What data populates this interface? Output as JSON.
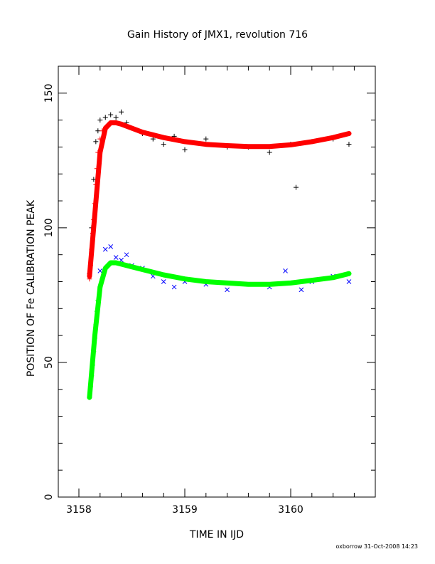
{
  "chart_data": {
    "type": "scatter",
    "title": "Gain History of JMX1, revolution 716",
    "xlabel": "TIME IN IJD",
    "ylabel": "POSITION OF Fe CALIBRATION PEAK",
    "footer": "oxborrow 31-Oct-2008 14:23",
    "xlim": [
      3157.8,
      3160.75
    ],
    "ylim": [
      0,
      160
    ],
    "x_ticks": [
      3158,
      3159,
      3160
    ],
    "x_tick_labels": [
      "3158",
      "3159",
      "3160"
    ],
    "y_ticks": [
      0,
      50,
      100,
      150
    ],
    "y_tick_labels": [
      "0",
      "50",
      "100",
      "150"
    ],
    "grid": false,
    "series": [
      {
        "marker": "plus",
        "color": "#000000",
        "x": [
          3158.1,
          3158.12,
          3158.14,
          3158.16,
          3158.18,
          3158.2,
          3158.25,
          3158.3,
          3158.35,
          3158.4,
          3158.45,
          3158.5,
          3158.6,
          3158.7,
          3158.8,
          3158.9,
          3159.0,
          3159.2,
          3159.4,
          3159.6,
          3159.8,
          3160.0,
          3160.05,
          3160.2,
          3160.4,
          3160.55
        ],
        "y": [
          83,
          100,
          118,
          132,
          136,
          140,
          141,
          142,
          141,
          143,
          139,
          137,
          135,
          133,
          131,
          134,
          129,
          133,
          130,
          130,
          128,
          131,
          115,
          132,
          133,
          131
        ]
      },
      {
        "marker": "x",
        "color": "#0000ff",
        "x": [
          3158.2,
          3158.25,
          3158.3,
          3158.35,
          3158.4,
          3158.45,
          3158.5,
          3158.6,
          3158.7,
          3158.8,
          3158.9,
          3159.0,
          3159.2,
          3159.4,
          3159.6,
          3159.8,
          3159.95,
          3160.1,
          3160.2,
          3160.4,
          3160.55
        ],
        "y": [
          84,
          92,
          93,
          89,
          88,
          90,
          86,
          85,
          82,
          80,
          78,
          80,
          79,
          77,
          79,
          78,
          84,
          77,
          80,
          82,
          80
        ]
      },
      {
        "marker": "line",
        "color": "#ff0000",
        "x": [
          3158.1,
          3158.15,
          3158.2,
          3158.25,
          3158.3,
          3158.35,
          3158.4,
          3158.5,
          3158.6,
          3158.8,
          3159.0,
          3159.2,
          3159.4,
          3159.6,
          3159.8,
          3160.0,
          3160.2,
          3160.4,
          3160.55
        ],
        "y": [
          82,
          105,
          128,
          137,
          139,
          139,
          138.5,
          137,
          135.5,
          133.5,
          132,
          131,
          130.5,
          130.2,
          130.2,
          130.8,
          132,
          133.5,
          135
        ]
      },
      {
        "marker": "line",
        "color": "#00ff00",
        "x": [
          3158.1,
          3158.15,
          3158.2,
          3158.25,
          3158.3,
          3158.35,
          3158.4,
          3158.5,
          3158.6,
          3158.8,
          3159.0,
          3159.2,
          3159.4,
          3159.6,
          3159.8,
          3160.0,
          3160.2,
          3160.4,
          3160.55
        ],
        "y": [
          37,
          60,
          78,
          85,
          87,
          87,
          86.5,
          85.5,
          84.5,
          82.5,
          81,
          80,
          79.5,
          79,
          79,
          79.5,
          80.5,
          81.5,
          83
        ]
      },
      {
        "marker": "plus",
        "color": "#ff0000",
        "x": [
          3158.1,
          3158.11,
          3158.12,
          3158.13,
          3158.14,
          3158.15,
          3158.16,
          3158.17,
          3158.18,
          3158.2,
          3158.22
        ],
        "y": [
          81,
          86,
          92,
          98,
          103,
          109,
          116,
          122,
          128,
          133,
          136
        ]
      },
      {
        "marker": "plus",
        "color": "#00ff00",
        "x": [
          3158.1,
          3158.11,
          3158.12,
          3158.13,
          3158.14,
          3158.15,
          3158.16,
          3158.17,
          3158.18,
          3158.2,
          3158.22
        ],
        "y": [
          37,
          41,
          45,
          49,
          54,
          59,
          64,
          69,
          73,
          78,
          81
        ]
      }
    ]
  }
}
